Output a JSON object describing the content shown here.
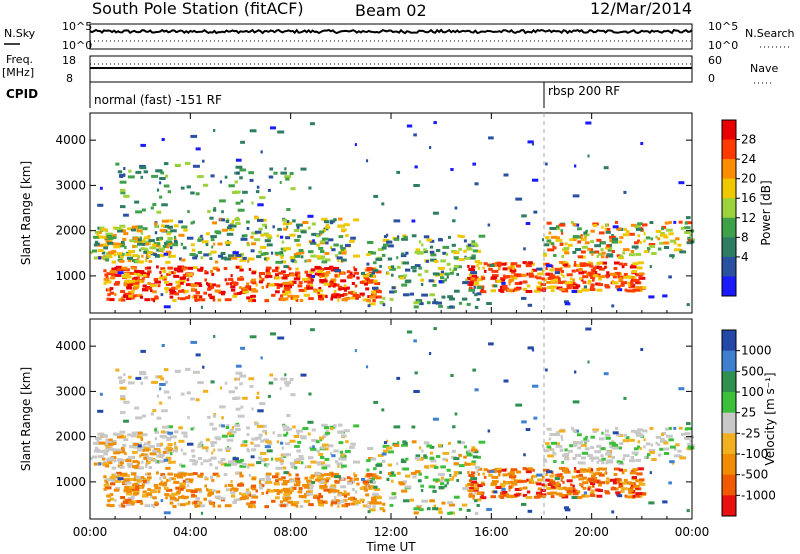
{
  "header": {
    "station": "South Pole Station (fitACF)",
    "beam": "Beam 02",
    "date": "12/Mar/2014"
  },
  "summary_panels": {
    "nsky_label": "N.Sky",
    "nsearch_label": "N.Search",
    "noise_ticks": [
      "10^5",
      "10^0"
    ],
    "freq_label": "Freq.",
    "freq_unit": "[MHz]",
    "freq_ticks": [
      "18",
      "8"
    ],
    "nave_label": "Nave",
    "nave_ticks": [
      "60",
      "0"
    ],
    "cpid_label": "CPID",
    "cpid_segments": [
      {
        "label": "normal (fast) -151 RF",
        "start_hour": 0
      },
      {
        "label": "rbsp 200 RF",
        "start_hour": 18.1
      }
    ]
  },
  "chart_data": [
    {
      "type": "heatmap",
      "title": "",
      "parameter": "Power",
      "ylabel": "Slant Range [km]",
      "xlabel": "",
      "x_range_hours": [
        0,
        24
      ],
      "ylim": [
        180,
        4600
      ],
      "y_ticks": [
        1000,
        2000,
        3000,
        4000
      ],
      "colorbar": {
        "label": "Power [dB]",
        "ticks": [
          "28",
          "24",
          "20",
          "16",
          "12",
          "8",
          "4"
        ],
        "colors": [
          "#e80000",
          "#ff3a00",
          "#ff8c00",
          "#f0c800",
          "#9cd23c",
          "#3fa04a",
          "#2e7d63",
          "#2a50a0",
          "#1a1aff"
        ]
      }
    },
    {
      "type": "heatmap",
      "title": "",
      "parameter": "Velocity",
      "ylabel": "Slant Range [km]",
      "xlabel": "Time UT",
      "x_range_hours": [
        0,
        24
      ],
      "ylim": [
        180,
        4600
      ],
      "y_ticks": [
        1000,
        2000,
        3000,
        4000
      ],
      "x_tick_labels": [
        "00:00",
        "04:00",
        "08:00",
        "12:00",
        "16:00",
        "20:00",
        "00:00"
      ],
      "colorbar": {
        "label": "Velocity [m s⁻¹]",
        "ticks": [
          "1000",
          "500",
          "100",
          "25",
          "-25",
          "-100",
          "-500",
          "-1000"
        ],
        "colors": [
          "#2448a8",
          "#3f7fd0",
          "#2f9050",
          "#3cc03c",
          "#c8c8c8",
          "#f0b020",
          "#f08c00",
          "#f05a00",
          "#e81010"
        ]
      }
    }
  ]
}
